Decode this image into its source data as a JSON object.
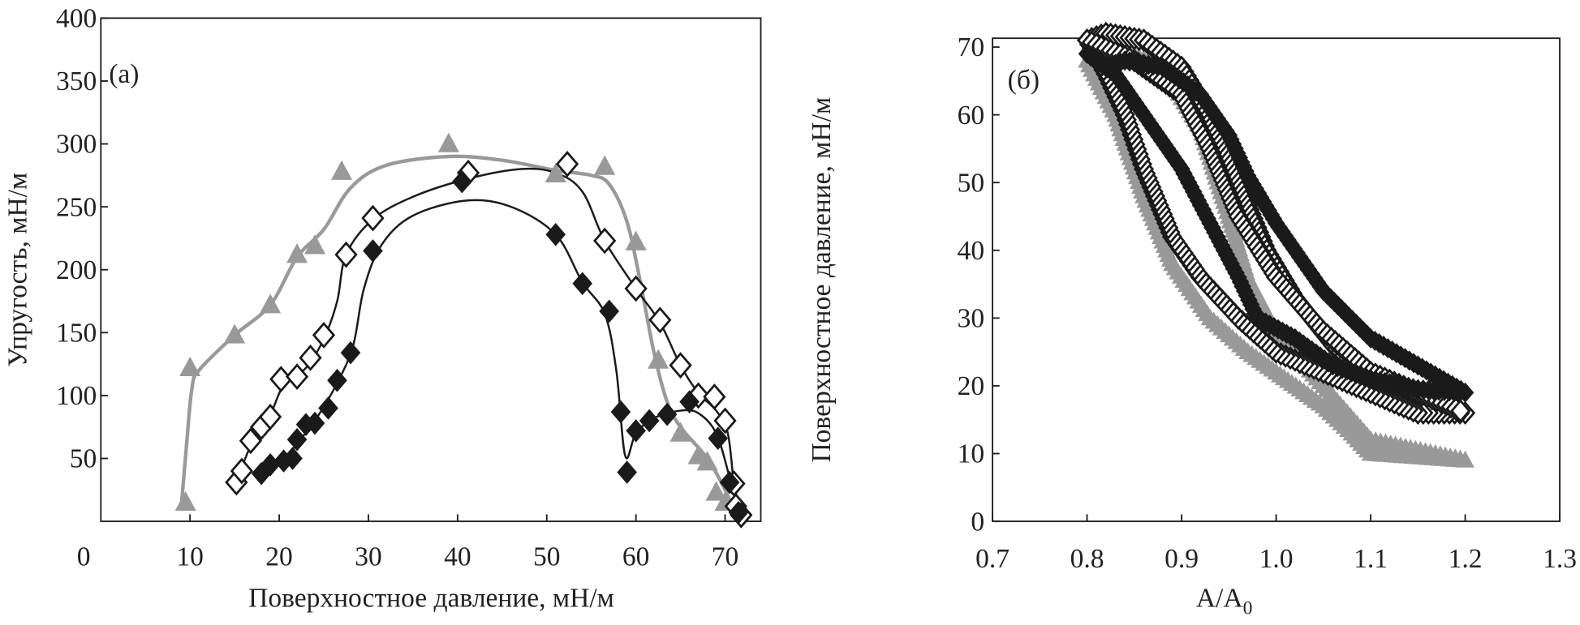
{
  "chart_data": [
    {
      "type": "line",
      "panel_label": "(a)",
      "xlabel": "Поверхностное давление, мН/м",
      "ylabel": "Упругость, мН/м",
      "xlim": [
        0,
        74
      ],
      "ylim": [
        0,
        400
      ],
      "xticks": [
        "0",
        "10",
        "20",
        "30",
        "40",
        "50",
        "60",
        "70"
      ],
      "yticks": [
        "50",
        "100",
        "150",
        "200",
        "250",
        "300",
        "350",
        "400"
      ],
      "grid": false,
      "colors": {
        "gray": "#999999",
        "black": "#1a1a1a"
      },
      "series": [
        {
          "name": "gray-triangles",
          "marker": "triangle",
          "color": "#999999",
          "points": [
            [
              9.5,
              15
            ],
            [
              10,
              122
            ],
            [
              15,
              148
            ],
            [
              19,
              172
            ],
            [
              22,
              212
            ],
            [
              24,
              219
            ],
            [
              27,
              278
            ],
            [
              39,
              300
            ],
            [
              51,
              276
            ],
            [
              56.5,
              282
            ],
            [
              60,
              222
            ],
            [
              62.5,
              128
            ],
            [
              65,
              70
            ],
            [
              67,
              52
            ],
            [
              68,
              47
            ],
            [
              69,
              23
            ],
            [
              70,
              15
            ]
          ],
          "curve": [
            [
              9,
              10
            ],
            [
              9.6,
              60
            ],
            [
              10.2,
              105
            ],
            [
              11,
              120
            ],
            [
              15,
              148
            ],
            [
              19,
              172
            ],
            [
              22,
              210
            ],
            [
              25,
              232
            ],
            [
              28,
              265
            ],
            [
              32,
              283
            ],
            [
              39,
              290
            ],
            [
              45,
              287
            ],
            [
              51,
              279
            ],
            [
              55,
              275
            ],
            [
              57,
              268
            ],
            [
              59,
              238
            ],
            [
              60.5,
              190
            ],
            [
              62,
              135
            ],
            [
              63.5,
              95
            ],
            [
              65,
              75
            ],
            [
              68,
              50
            ],
            [
              70,
              25
            ],
            [
              71,
              8
            ]
          ]
        },
        {
          "name": "open-diamonds",
          "marker": "diamond-open",
          "color": "#1a1a1a",
          "points": [
            [
              15.2,
              31
            ],
            [
              15.8,
              40
            ],
            [
              16.8,
              64
            ],
            [
              18,
              75
            ],
            [
              19,
              83
            ],
            [
              20.2,
              113
            ],
            [
              22,
              115
            ],
            [
              23.5,
              130
            ],
            [
              25,
              148
            ],
            [
              27.5,
              212
            ],
            [
              30.5,
              241
            ],
            [
              41.2,
              277
            ],
            [
              52.3,
              284
            ],
            [
              56.5,
              223
            ],
            [
              60,
              185
            ],
            [
              62.7,
              160
            ],
            [
              65,
              124
            ],
            [
              67,
              100
            ],
            [
              68.8,
              99
            ],
            [
              70,
              80
            ],
            [
              71,
              30
            ],
            [
              71.2,
              12
            ],
            [
              71.8,
              5
            ]
          ],
          "curve": [
            [
              15.2,
              31
            ],
            [
              16.8,
              60
            ],
            [
              19,
              85
            ],
            [
              20.5,
              108
            ],
            [
              23,
              122
            ],
            [
              25,
              145
            ],
            [
              26.5,
              175
            ],
            [
              27.5,
              212
            ],
            [
              30.5,
              240
            ],
            [
              35,
              258
            ],
            [
              41,
              272
            ],
            [
              47,
              280
            ],
            [
              51,
              277
            ],
            [
              54,
              262
            ],
            [
              56.5,
              223
            ],
            [
              60,
              185
            ],
            [
              62.7,
              158
            ],
            [
              65,
              124
            ],
            [
              67,
              102
            ],
            [
              69,
              88
            ],
            [
              70.3,
              70
            ],
            [
              71,
              30
            ],
            [
              71.8,
              5
            ]
          ]
        },
        {
          "name": "filled-diamonds",
          "marker": "diamond-filled",
          "color": "#1a1a1a",
          "points": [
            [
              18,
              38
            ],
            [
              19,
              45
            ],
            [
              20.5,
              48
            ],
            [
              21.5,
              50
            ],
            [
              22,
              65
            ],
            [
              23,
              77
            ],
            [
              24,
              78
            ],
            [
              25.5,
              90
            ],
            [
              26.5,
              112
            ],
            [
              28,
              134
            ],
            [
              30.5,
              215
            ],
            [
              40.5,
              270
            ],
            [
              51,
              228
            ],
            [
              54,
              189
            ],
            [
              57,
              167
            ],
            [
              58.3,
              87
            ],
            [
              59,
              39
            ],
            [
              60,
              72
            ],
            [
              61.5,
              80
            ],
            [
              63.5,
              85
            ],
            [
              66,
              95
            ],
            [
              69.2,
              66
            ],
            [
              70.5,
              31
            ],
            [
              71.5,
              7
            ]
          ],
          "curve": [
            [
              18,
              38
            ],
            [
              20.5,
              48
            ],
            [
              22,
              62
            ],
            [
              24,
              80
            ],
            [
              26.5,
              110
            ],
            [
              28.3,
              140
            ],
            [
              29.5,
              185
            ],
            [
              31.5,
              220
            ],
            [
              35,
              243
            ],
            [
              41,
              255
            ],
            [
              46,
              250
            ],
            [
              51,
              228
            ],
            [
              54,
              190
            ],
            [
              56.5,
              165
            ],
            [
              57.8,
              120
            ],
            [
              58.8,
              52
            ],
            [
              60,
              70
            ],
            [
              62,
              82
            ],
            [
              65,
              88
            ],
            [
              67,
              86
            ],
            [
              69,
              70
            ],
            [
              70.5,
              35
            ],
            [
              71.5,
              7
            ]
          ]
        }
      ]
    },
    {
      "type": "scatter",
      "panel_label": "(б)",
      "xlabel": "A/A",
      "xlabel_sub": "0",
      "ylabel": "Поверхностное давление, мН/м",
      "xlim": [
        0.7,
        1.3
      ],
      "ylim": [
        0,
        71.3
      ],
      "xticks": [
        "0.7",
        "0.8",
        "0.9",
        "1.0",
        "1.1",
        "1.2",
        "1.3"
      ],
      "yticks": [
        "0",
        "10",
        "20",
        "30",
        "40",
        "50",
        "60",
        "70"
      ],
      "grid": false,
      "series": [
        {
          "name": "gray-triangles",
          "marker": "triangle",
          "color": "#999999",
          "loop": [
            [
              0.8,
              68
            ],
            [
              0.83,
              60
            ],
            [
              0.86,
              48
            ],
            [
              0.89,
              38
            ],
            [
              0.93,
              30
            ],
            [
              0.97,
              25
            ],
            [
              1.0,
              22
            ],
            [
              1.05,
              17
            ],
            [
              1.08,
              13
            ],
            [
              1.1,
              10
            ],
            [
              1.15,
              9.5
            ],
            [
              1.2,
              9
            ],
            [
              1.1,
              12
            ],
            [
              1.05,
              20
            ],
            [
              1.0,
              28
            ],
            [
              0.97,
              36
            ],
            [
              0.95,
              45
            ],
            [
              0.92,
              58
            ],
            [
              0.88,
              67
            ],
            [
              0.83,
              70
            ],
            [
              0.8,
              68
            ]
          ]
        },
        {
          "name": "open-diamonds",
          "marker": "diamond-open",
          "color": "#1a1a1a",
          "loop": [
            [
              0.8,
              71
            ],
            [
              0.82,
              72
            ],
            [
              0.86,
              71
            ],
            [
              0.9,
              67
            ],
            [
              0.93,
              60
            ],
            [
              0.96,
              50
            ],
            [
              0.99,
              40
            ],
            [
              1.02,
              33
            ],
            [
              1.06,
              26
            ],
            [
              1.1,
              21
            ],
            [
              1.15,
              18
            ],
            [
              1.2,
              16
            ],
            [
              1.15,
              16
            ],
            [
              1.1,
              19
            ],
            [
              1.05,
              22
            ],
            [
              1.0,
              25
            ],
            [
              0.96,
              30
            ],
            [
              0.92,
              36
            ],
            [
              0.89,
              42
            ],
            [
              0.86,
              52
            ],
            [
              0.84,
              60
            ],
            [
              0.82,
              66
            ],
            [
              0.8,
              71
            ],
            [
              0.85,
              68
            ],
            [
              0.9,
              63
            ],
            [
              0.93,
              55
            ],
            [
              0.96,
              45
            ],
            [
              1.0,
              36
            ],
            [
              1.05,
              28
            ],
            [
              1.1,
              22
            ],
            [
              1.2,
              16
            ]
          ]
        },
        {
          "name": "filled-diamonds",
          "marker": "diamond-filled",
          "color": "#1a1a1a",
          "loop": [
            [
              1.2,
              19
            ],
            [
              1.15,
              23
            ],
            [
              1.1,
              27
            ],
            [
              1.05,
              34
            ],
            [
              1.0,
              44
            ],
            [
              0.97,
              51
            ],
            [
              0.95,
              57
            ],
            [
              0.92,
              63
            ],
            [
              0.88,
              67
            ],
            [
              0.84,
              68
            ],
            [
              0.82,
              67
            ],
            [
              0.8,
              69
            ],
            [
              0.83,
              66
            ],
            [
              0.87,
              58
            ],
            [
              0.9,
              52
            ],
            [
              0.93,
              44
            ],
            [
              0.96,
              36
            ],
            [
              0.98,
              30
            ],
            [
              1.02,
              27
            ],
            [
              1.06,
              23
            ],
            [
              1.1,
              21
            ],
            [
              1.15,
              19.5
            ],
            [
              1.2,
              19
            ]
          ]
        }
      ]
    }
  ]
}
